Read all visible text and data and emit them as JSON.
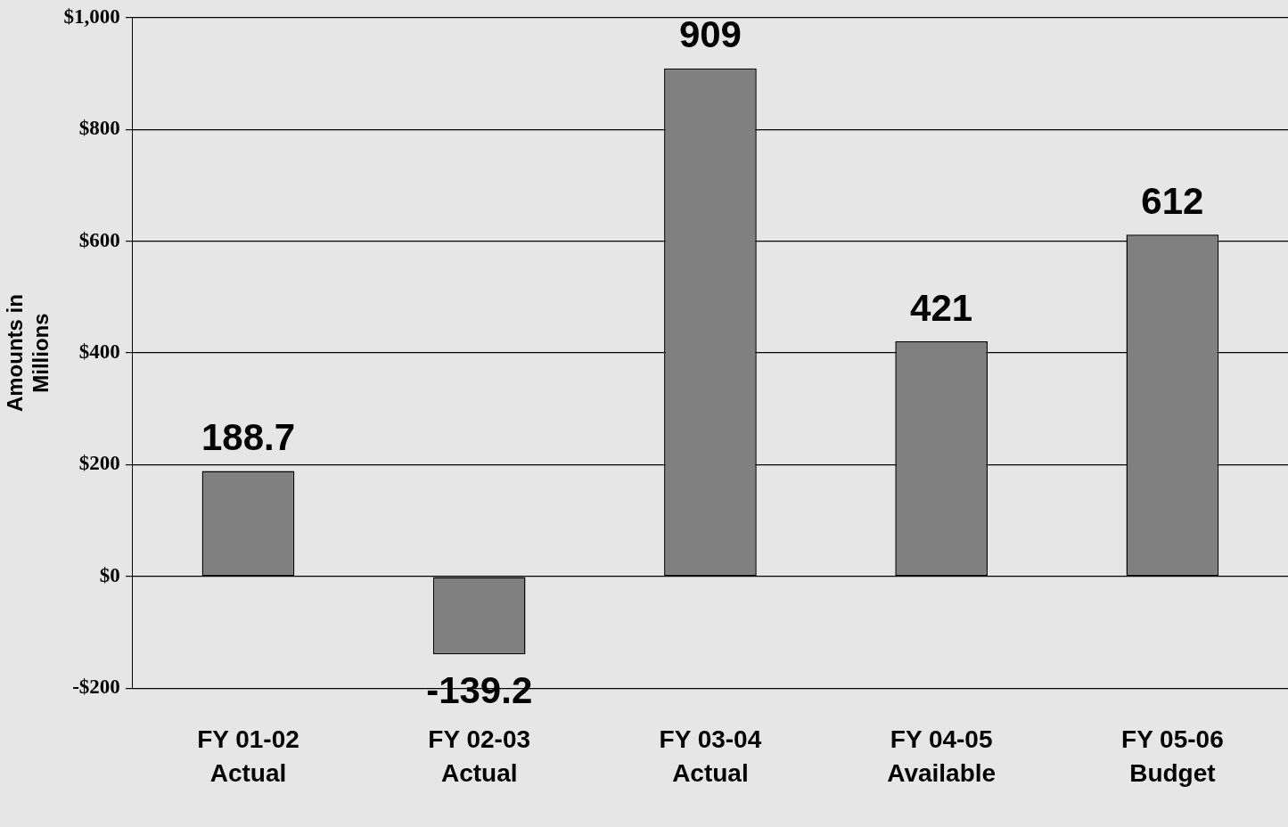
{
  "chart_data": {
    "type": "bar",
    "ylabel": "Amounts in Millions",
    "categories": [
      "FY 01-02 Actual",
      "FY 02-03 Actual",
      "FY 03-04 Actual",
      "FY 04-05 Available",
      "FY 05-06 Budget"
    ],
    "values": [
      188.7,
      -139.2,
      909,
      421,
      612
    ],
    "color": "#808080",
    "ylim": [
      -200,
      1000
    ],
    "yticks": [
      {
        "value": -200,
        "label": "-$200"
      },
      {
        "value": 0,
        "label": "$0"
      },
      {
        "value": 200,
        "label": "$200"
      },
      {
        "value": 400,
        "label": "$400"
      },
      {
        "value": 600,
        "label": "$600"
      },
      {
        "value": 800,
        "label": "$800"
      },
      {
        "value": 1000,
        "label": "$1,000"
      }
    ],
    "grid": "y",
    "legend": false,
    "data_labels": true
  }
}
